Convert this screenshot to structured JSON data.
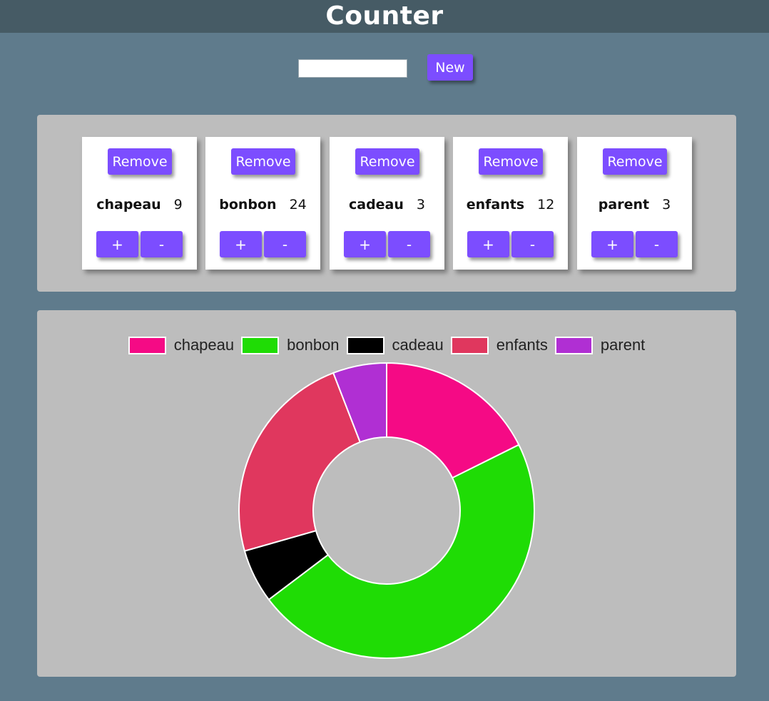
{
  "header": {
    "title": "Counter"
  },
  "new_counter": {
    "input_value": "",
    "button_label": "New"
  },
  "counters": [
    {
      "name": "chapeau",
      "value": "9",
      "remove_label": "Remove",
      "plus_label": "+",
      "minus_label": "-"
    },
    {
      "name": "bonbon",
      "value": "24",
      "remove_label": "Remove",
      "plus_label": "+",
      "minus_label": "-"
    },
    {
      "name": "cadeau",
      "value": "3",
      "remove_label": "Remove",
      "plus_label": "+",
      "minus_label": "-"
    },
    {
      "name": "enfants",
      "value": "12",
      "remove_label": "Remove",
      "plus_label": "+",
      "minus_label": "-"
    },
    {
      "name": "parent",
      "value": "3",
      "remove_label": "Remove",
      "plus_label": "+",
      "minus_label": "-"
    }
  ],
  "colors": {
    "accent": "#7c4dff",
    "header_bg": "#465b65",
    "page_bg": "#5f7b8c",
    "panel_bg": "#bdbdbd"
  },
  "chart_data": {
    "type": "doughnut",
    "categories": [
      "chapeau",
      "bonbon",
      "cadeau",
      "enfants",
      "parent"
    ],
    "values": [
      9,
      24,
      3,
      12,
      3
    ],
    "colors": [
      "#f50a85",
      "#1fdc05",
      "#000000",
      "#e0375e",
      "#b02fd3"
    ],
    "legend_position": "top"
  }
}
